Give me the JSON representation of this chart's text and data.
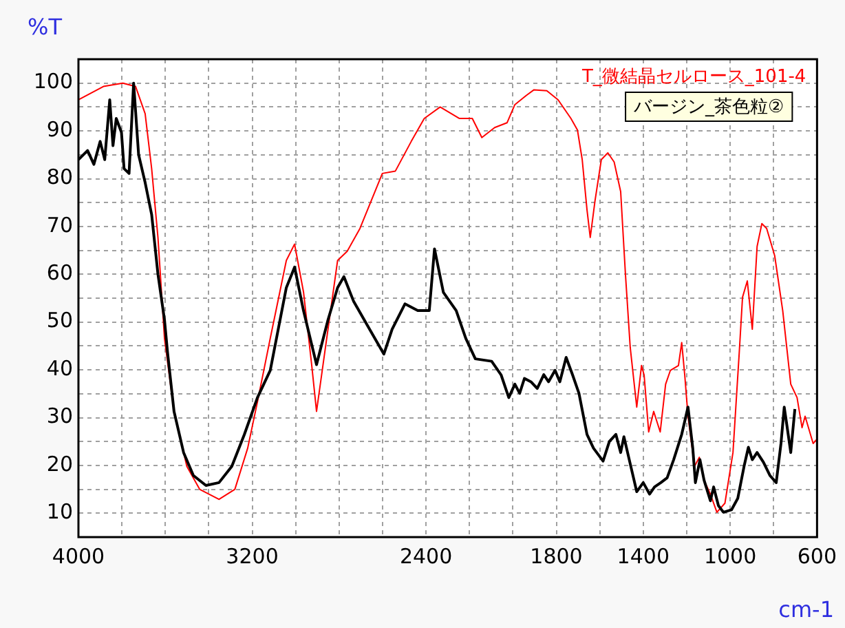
{
  "chart_data": {
    "type": "line",
    "xlabel": "cm-1",
    "ylabel": "%T",
    "xlim": [
      4000,
      600
    ],
    "xticks": [
      4000,
      {
        "value": 3800,
        "label": null
      },
      {
        "value": 3600,
        "label": null
      },
      {
        "value": 3400,
        "label": null
      },
      3200,
      {
        "value": 3000,
        "label": null
      },
      {
        "value": 2800,
        "label": null
      },
      {
        "value": 2600,
        "label": null
      },
      2400,
      {
        "value": 2200,
        "label": null
      },
      {
        "value": 2000,
        "label": null
      },
      1800,
      {
        "value": 1600,
        "label": null
      },
      1400,
      {
        "value": 1200,
        "label": null
      },
      1000,
      {
        "value": 800,
        "label": null
      },
      600
    ],
    "ylim": [
      5,
      105
    ],
    "yticks": [
      10,
      {
        "value": 15,
        "label": null
      },
      20,
      {
        "value": 25,
        "label": null
      },
      30,
      {
        "value": 35,
        "label": null
      },
      40,
      {
        "value": 45,
        "label": null
      },
      50,
      {
        "value": 55,
        "label": null
      },
      60,
      {
        "value": 65,
        "label": null
      },
      70,
      {
        "value": 75,
        "label": null
      },
      80,
      {
        "value": 85,
        "label": null
      },
      90,
      {
        "value": 95,
        "label": null
      },
      100
    ],
    "grid": true,
    "legend": "top right",
    "marker": "none",
    "line_style": "solid",
    "series": [
      {
        "name": "T_微結晶セルロース_101-4",
        "color": "#ff0000",
        "x": [
          4000,
          3885,
          3796,
          3737,
          3693,
          3663,
          3634,
          3604,
          3560,
          3501,
          3442,
          3353,
          3280,
          3221,
          3176,
          3117,
          3043,
          3005,
          2964,
          2926,
          2904,
          2866,
          2807,
          2763,
          2704,
          2601,
          2541,
          2468,
          2408,
          2335,
          2246,
          2187,
          2143,
          2084,
          2027,
          1991,
          1939,
          1903,
          1844,
          1792,
          1733,
          1703,
          1681,
          1659,
          1644,
          1622,
          1593,
          1563,
          1534,
          1504,
          1482,
          1460,
          1430,
          1408,
          1396,
          1375,
          1352,
          1322,
          1297,
          1275,
          1238,
          1223,
          1209,
          1194,
          1164,
          1142,
          1120,
          1091,
          1061,
          1024,
          987,
          958,
          943,
          921,
          898,
          876,
          854,
          832,
          795,
          758,
          721,
          692,
          669,
          655,
          618,
          600
        ],
        "values": [
          96.5,
          99.3,
          100,
          99.3,
          93.6,
          82.1,
          67.7,
          46.6,
          31.3,
          19.8,
          15,
          12.9,
          15,
          23.6,
          33.3,
          46.6,
          62.9,
          66.3,
          56.3,
          40.9,
          31.3,
          43.7,
          62.9,
          64.8,
          69.6,
          81.1,
          81.6,
          87.8,
          92.6,
          95,
          92.6,
          92.6,
          88.6,
          90.7,
          91.7,
          95.5,
          97.4,
          98.6,
          98.4,
          96.5,
          92.6,
          90.2,
          84,
          73.5,
          67.7,
          75.4,
          84,
          85.4,
          83.5,
          77.3,
          60,
          44.7,
          32.2,
          40.9,
          38.9,
          27,
          31.3,
          27,
          37,
          39.9,
          40.9,
          45.7,
          38.9,
          30.3,
          19.8,
          21.7,
          16.9,
          14,
          10.2,
          12.1,
          22.7,
          43.7,
          55.2,
          58.6,
          48.5,
          65.8,
          70.6,
          69.6,
          63.9,
          52.4,
          37,
          34.2,
          27.9,
          30.3,
          24.6,
          25.5
        ]
      },
      {
        "name": "バージン_茶色粒②",
        "color": "#000000",
        "x": [
          4000,
          3958,
          3929,
          3900,
          3879,
          3856,
          3841,
          3826,
          3802,
          3790,
          3767,
          3746,
          3723,
          3693,
          3663,
          3634,
          3604,
          3590,
          3560,
          3516,
          3471,
          3413,
          3353,
          3294,
          3236,
          3176,
          3117,
          3043,
          3005,
          2964,
          2904,
          2851,
          2807,
          2778,
          2733,
          2660,
          2594,
          2556,
          2497,
          2438,
          2385,
          2361,
          2320,
          2261,
          2217,
          2173,
          2098,
          2054,
          2019,
          1991,
          1969,
          1947,
          1917,
          1888,
          1858,
          1836,
          1806,
          1784,
          1755,
          1725,
          1696,
          1659,
          1629,
          1585,
          1556,
          1526,
          1504,
          1489,
          1467,
          1430,
          1400,
          1371,
          1348,
          1319,
          1290,
          1260,
          1223,
          1194,
          1172,
          1160,
          1139,
          1120,
          1091,
          1076,
          1054,
          1031,
          994,
          965,
          936,
          916,
          898,
          876,
          847,
          817,
          788,
          766,
          751,
          736,
          721,
          702
        ],
        "values": [
          84,
          85.9,
          83,
          87.8,
          84,
          96.5,
          86.9,
          92.6,
          89.7,
          82.1,
          81.1,
          100,
          85,
          79.2,
          72.5,
          60,
          50.5,
          43.7,
          31.3,
          22.7,
          17.9,
          15.8,
          16.4,
          19.8,
          26.5,
          34.2,
          39.9,
          57.2,
          61.5,
          52.4,
          41.1,
          50.5,
          57.2,
          59.5,
          54.3,
          48.5,
          43.3,
          48.5,
          53.8,
          52.4,
          52.4,
          65.3,
          56.2,
          52.4,
          46.6,
          42.3,
          41.8,
          38.9,
          34.2,
          37,
          35.1,
          38.2,
          37.5,
          36.1,
          39,
          37.5,
          39.9,
          37.5,
          42.6,
          38.9,
          35.1,
          26.5,
          23.6,
          20.9,
          25,
          26.5,
          22.7,
          26,
          21.7,
          14.5,
          16.4,
          14,
          15.5,
          16.4,
          17.4,
          21.2,
          26.5,
          32.2,
          23.6,
          16.4,
          21.2,
          16.9,
          12.6,
          15.5,
          11.6,
          10.2,
          10.7,
          13.1,
          19.8,
          23.8,
          21.2,
          22.7,
          20.7,
          17.9,
          16.4,
          24.6,
          32.2,
          27.5,
          22.7,
          31.8
        ]
      }
    ]
  }
}
